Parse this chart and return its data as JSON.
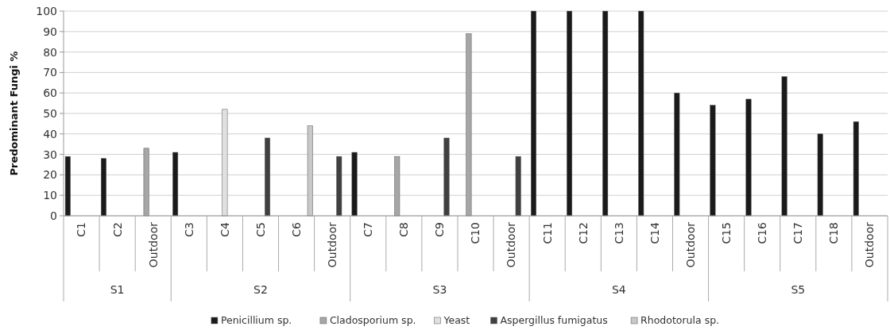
{
  "chart_data": {
    "type": "bar",
    "ylabel": "Predominant Fungi %",
    "categories": [
      "C1",
      "C2",
      "Outdoor",
      "C3",
      "C4",
      "C5",
      "C6",
      "Outdoor",
      "C7",
      "C8",
      "C9",
      "C10",
      "Outdoor",
      "C11",
      "C12",
      "C13",
      "C14",
      "Outdoor",
      "C15",
      "C16",
      "C17",
      "C18",
      "Outdoor"
    ],
    "series": [
      {
        "name": "Penicillium sp.",
        "color": "#1a1a1a",
        "values": [
          29,
          28,
          null,
          31,
          null,
          null,
          null,
          null,
          31,
          null,
          null,
          null,
          null,
          100,
          100,
          100,
          100,
          60,
          54,
          57,
          68,
          40,
          46
        ]
      },
      {
        "name": "Cladosporium sp.",
        "color": "#a6a6a6",
        "values": [
          null,
          null,
          33,
          null,
          null,
          null,
          null,
          null,
          null,
          29,
          null,
          89,
          null,
          null,
          null,
          null,
          null,
          null,
          null,
          null,
          null,
          null,
          null
        ]
      },
      {
        "name": "Yeast",
        "color": "#e0e0e0",
        "values": [
          null,
          null,
          null,
          null,
          52,
          null,
          null,
          null,
          null,
          null,
          null,
          null,
          null,
          null,
          null,
          null,
          null,
          null,
          null,
          null,
          null,
          null,
          null
        ]
      },
      {
        "name": "Aspergillus fumigatus",
        "color": "#404040",
        "values": [
          null,
          null,
          null,
          null,
          null,
          38,
          null,
          29,
          null,
          null,
          38,
          null,
          29,
          null,
          null,
          null,
          null,
          null,
          null,
          null,
          null,
          null,
          null
        ]
      },
      {
        "name": "Rhodotorula sp.",
        "color": "#c8c8c8",
        "values": [
          null,
          null,
          null,
          null,
          null,
          null,
          44,
          null,
          null,
          null,
          null,
          null,
          null,
          null,
          null,
          null,
          null,
          null,
          null,
          null,
          null,
          null,
          null
        ]
      }
    ],
    "annotations": [
      "S1",
      "S2",
      "S3",
      "S4",
      "S5"
    ],
    "ylim": [
      0,
      100
    ],
    "yticks": [
      0,
      10,
      20,
      30,
      40,
      50,
      60,
      70,
      80,
      90,
      100
    ],
    "grid": "y",
    "legend": "bottom"
  }
}
